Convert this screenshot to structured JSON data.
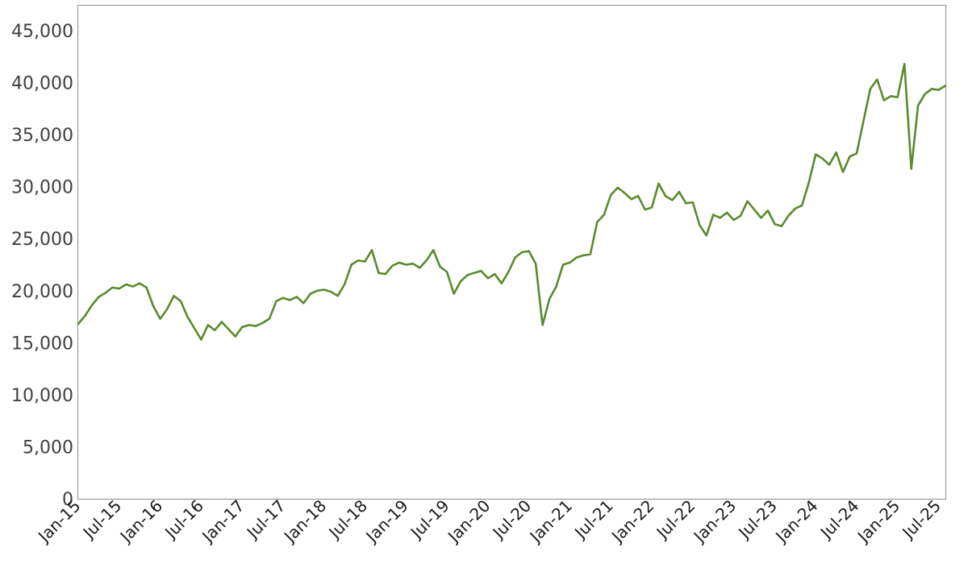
{
  "chart_data": {
    "type": "line",
    "title": "",
    "xlabel": "",
    "ylabel": "",
    "x_is_date": true,
    "xlim": [
      "2015-01",
      "2025-08"
    ],
    "ylim": [
      0,
      47400
    ],
    "grid": false,
    "legend": "none",
    "y_ticks": [
      0,
      5000,
      10000,
      15000,
      20000,
      25000,
      30000,
      35000,
      40000,
      45000
    ],
    "y_tick_labels": [
      "0",
      "5,000",
      "10,000",
      "15,000",
      "20,000",
      "25,000",
      "30,000",
      "35,000",
      "40,000",
      "45,000"
    ],
    "x_ticks": [
      "2015-01",
      "2015-07",
      "2016-01",
      "2016-07",
      "2017-01",
      "2017-07",
      "2018-01",
      "2018-07",
      "2019-01",
      "2019-07",
      "2020-01",
      "2020-07",
      "2021-01",
      "2021-07",
      "2022-01",
      "2022-07",
      "2023-01",
      "2023-07",
      "2024-01",
      "2024-07",
      "2025-01",
      "2025-07"
    ],
    "x_tick_labels": [
      "Jan-15",
      "Jul-15",
      "Jan-16",
      "Jul-16",
      "Jan-17",
      "Jul-17",
      "Jan-18",
      "Jul-18",
      "Jan-19",
      "Jul-19",
      "Jan-20",
      "Jul-20",
      "Jan-21",
      "Jul-21",
      "Jan-22",
      "Jul-22",
      "Jan-23",
      "Jul-23",
      "Jan-24",
      "Jul-24",
      "Jan-25",
      "Jul-25"
    ],
    "series": [
      {
        "color": "#5a8a2e",
        "points": [
          [
            "2015-01",
            16800
          ],
          [
            "2015-02",
            17600
          ],
          [
            "2015-03",
            18600
          ],
          [
            "2015-04",
            19400
          ],
          [
            "2015-05",
            19800
          ],
          [
            "2015-06",
            20300
          ],
          [
            "2015-07",
            20200
          ],
          [
            "2015-08",
            20600
          ],
          [
            "2015-09",
            20400
          ],
          [
            "2015-10",
            20700
          ],
          [
            "2015-11",
            20300
          ],
          [
            "2015-12",
            18500
          ],
          [
            "2016-01",
            17300
          ],
          [
            "2016-02",
            18200
          ],
          [
            "2016-03",
            19500
          ],
          [
            "2016-04",
            19000
          ],
          [
            "2016-05",
            17500
          ],
          [
            "2016-06",
            16400
          ],
          [
            "2016-07",
            15300
          ],
          [
            "2016-08",
            16700
          ],
          [
            "2016-09",
            16200
          ],
          [
            "2016-10",
            17000
          ],
          [
            "2016-11",
            16300
          ],
          [
            "2016-12",
            15600
          ],
          [
            "2017-01",
            16500
          ],
          [
            "2017-02",
            16700
          ],
          [
            "2017-03",
            16600
          ],
          [
            "2017-04",
            16900
          ],
          [
            "2017-05",
            17300
          ],
          [
            "2017-06",
            19000
          ],
          [
            "2017-07",
            19300
          ],
          [
            "2017-08",
            19100
          ],
          [
            "2017-09",
            19400
          ],
          [
            "2017-10",
            18800
          ],
          [
            "2017-11",
            19700
          ],
          [
            "2017-12",
            20000
          ],
          [
            "2018-01",
            20100
          ],
          [
            "2018-02",
            19900
          ],
          [
            "2018-03",
            19500
          ],
          [
            "2018-04",
            20600
          ],
          [
            "2018-05",
            22500
          ],
          [
            "2018-06",
            22900
          ],
          [
            "2018-07",
            22800
          ],
          [
            "2018-08",
            23900
          ],
          [
            "2018-09",
            21700
          ],
          [
            "2018-10",
            21600
          ],
          [
            "2018-11",
            22400
          ],
          [
            "2018-12",
            22700
          ],
          [
            "2019-01",
            22500
          ],
          [
            "2019-02",
            22600
          ],
          [
            "2019-03",
            22200
          ],
          [
            "2019-04",
            22900
          ],
          [
            "2019-05",
            23900
          ],
          [
            "2019-06",
            22300
          ],
          [
            "2019-07",
            21800
          ],
          [
            "2019-08",
            19700
          ],
          [
            "2019-09",
            20900
          ],
          [
            "2019-10",
            21500
          ],
          [
            "2019-11",
            21700
          ],
          [
            "2019-12",
            21900
          ],
          [
            "2020-01",
            21200
          ],
          [
            "2020-02",
            21600
          ],
          [
            "2020-03",
            20700
          ],
          [
            "2020-04",
            21800
          ],
          [
            "2020-05",
            23200
          ],
          [
            "2020-06",
            23700
          ],
          [
            "2020-07",
            23800
          ],
          [
            "2020-08",
            22600
          ],
          [
            "2020-09",
            16700
          ],
          [
            "2020-10",
            19200
          ],
          [
            "2020-11",
            20400
          ],
          [
            "2020-12",
            22500
          ],
          [
            "2021-01",
            22700
          ],
          [
            "2021-02",
            23200
          ],
          [
            "2021-03",
            23400
          ],
          [
            "2021-04",
            23500
          ],
          [
            "2021-05",
            26600
          ],
          [
            "2021-06",
            27300
          ],
          [
            "2021-07",
            29200
          ],
          [
            "2021-08",
            29900
          ],
          [
            "2021-09",
            29400
          ],
          [
            "2021-10",
            28800
          ],
          [
            "2021-11",
            29100
          ],
          [
            "2021-12",
            27800
          ],
          [
            "2022-01",
            28000
          ],
          [
            "2022-02",
            30300
          ],
          [
            "2022-03",
            29100
          ],
          [
            "2022-04",
            28700
          ],
          [
            "2022-05",
            29500
          ],
          [
            "2022-06",
            28400
          ],
          [
            "2022-07",
            28500
          ],
          [
            "2022-08",
            26300
          ],
          [
            "2022-09",
            25300
          ],
          [
            "2022-10",
            27300
          ],
          [
            "2022-11",
            27000
          ],
          [
            "2022-12",
            27500
          ],
          [
            "2023-01",
            26800
          ],
          [
            "2023-02",
            27200
          ],
          [
            "2023-03",
            28600
          ],
          [
            "2023-04",
            27800
          ],
          [
            "2023-05",
            27000
          ],
          [
            "2023-06",
            27700
          ],
          [
            "2023-07",
            26400
          ],
          [
            "2023-08",
            26200
          ],
          [
            "2023-09",
            27200
          ],
          [
            "2023-10",
            27900
          ],
          [
            "2023-11",
            28200
          ],
          [
            "2023-12",
            30400
          ],
          [
            "2024-01",
            33100
          ],
          [
            "2024-02",
            32700
          ],
          [
            "2024-03",
            32100
          ],
          [
            "2024-04",
            33300
          ],
          [
            "2024-05",
            31400
          ],
          [
            "2024-06",
            32900
          ],
          [
            "2024-07",
            33200
          ],
          [
            "2024-08",
            36300
          ],
          [
            "2024-09",
            39400
          ],
          [
            "2024-10",
            40300
          ],
          [
            "2024-11",
            38300
          ],
          [
            "2024-12",
            38700
          ],
          [
            "2025-01",
            38600
          ],
          [
            "2025-02",
            41800
          ],
          [
            "2025-03",
            31700
          ],
          [
            "2025-04",
            37800
          ],
          [
            "2025-05",
            38900
          ],
          [
            "2025-06",
            39400
          ],
          [
            "2025-07",
            39300
          ],
          [
            "2025-08",
            39700
          ]
        ]
      }
    ]
  }
}
